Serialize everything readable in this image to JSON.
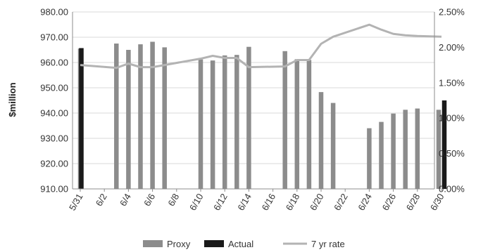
{
  "chart_data": {
    "type": "bar",
    "title": "",
    "xlabel": "",
    "ylabel": "$million",
    "y2label": "",
    "ylim": [
      910,
      980
    ],
    "y2lim": [
      0,
      2.5
    ],
    "x_ticks": [
      "5/31",
      "6/2",
      "6/4",
      "6/6",
      "6/8",
      "6/10",
      "6/12",
      "6/14",
      "6/16",
      "6/18",
      "6/20",
      "6/22",
      "6/24",
      "6/26",
      "6/28",
      "6/30"
    ],
    "y_ticks": [
      "910.00",
      "920.00",
      "930.00",
      "940.00",
      "950.00",
      "960.00",
      "970.00",
      "980.00"
    ],
    "y2_ticks": [
      "0.00%",
      "0.50%",
      "1.00%",
      "1.50%",
      "2.00%",
      "2.50%"
    ],
    "grid": "horizontal",
    "legend_position": "bottom",
    "series": [
      {
        "name": "Proxy",
        "type": "bar",
        "axis": "left",
        "color": "#8c8c8c",
        "points": [
          {
            "x": "5/31",
            "y": 965.5
          },
          {
            "x": "6/3",
            "y": 967.5
          },
          {
            "x": "6/4",
            "y": 965.0
          },
          {
            "x": "6/5",
            "y": 967.2
          },
          {
            "x": "6/6",
            "y": 968.2
          },
          {
            "x": "6/7",
            "y": 966.0
          },
          {
            "x": "6/10",
            "y": 961.2
          },
          {
            "x": "6/11",
            "y": 960.8
          },
          {
            "x": "6/12",
            "y": 962.8
          },
          {
            "x": "6/13",
            "y": 963.0
          },
          {
            "x": "6/14",
            "y": 966.2
          },
          {
            "x": "6/17",
            "y": 964.5
          },
          {
            "x": "6/18",
            "y": 961.3
          },
          {
            "x": "6/19",
            "y": 961.0
          },
          {
            "x": "6/20",
            "y": 948.3
          },
          {
            "x": "6/21",
            "y": 944.0
          },
          {
            "x": "6/24",
            "y": 934.0
          },
          {
            "x": "6/25",
            "y": 936.5
          },
          {
            "x": "6/26",
            "y": 939.8
          },
          {
            "x": "6/27",
            "y": 941.3
          },
          {
            "x": "6/28",
            "y": 941.8
          },
          {
            "x": "6/30",
            "y": 941.3
          }
        ]
      },
      {
        "name": "Actual",
        "type": "bar",
        "axis": "left",
        "color": "#1a1a1a",
        "points": [
          {
            "x": "5/31",
            "y": 965.7
          },
          {
            "x": "6/30",
            "y": 945.0
          }
        ]
      },
      {
        "name": "7 yr rate",
        "type": "line",
        "axis": "right",
        "unit": "%",
        "color": "#b3b3b3",
        "points": [
          {
            "x": "5/31",
            "y": 1.75
          },
          {
            "x": "6/3",
            "y": 1.71
          },
          {
            "x": "6/4",
            "y": 1.77
          },
          {
            "x": "6/5",
            "y": 1.72
          },
          {
            "x": "6/6",
            "y": 1.72
          },
          {
            "x": "6/7",
            "y": 1.75
          },
          {
            "x": "6/10",
            "y": 1.84
          },
          {
            "x": "6/11",
            "y": 1.88
          },
          {
            "x": "6/12",
            "y": 1.85
          },
          {
            "x": "6/13",
            "y": 1.85
          },
          {
            "x": "6/14",
            "y": 1.72
          },
          {
            "x": "6/17",
            "y": 1.73
          },
          {
            "x": "6/18",
            "y": 1.82
          },
          {
            "x": "6/19",
            "y": 1.82
          },
          {
            "x": "6/20",
            "y": 2.05
          },
          {
            "x": "6/21",
            "y": 2.15
          },
          {
            "x": "6/24",
            "y": 2.32
          },
          {
            "x": "6/25",
            "y": 2.25
          },
          {
            "x": "6/26",
            "y": 2.19
          },
          {
            "x": "6/27",
            "y": 2.17
          },
          {
            "x": "6/28",
            "y": 2.16
          },
          {
            "x": "6/30",
            "y": 2.15
          }
        ]
      }
    ]
  }
}
